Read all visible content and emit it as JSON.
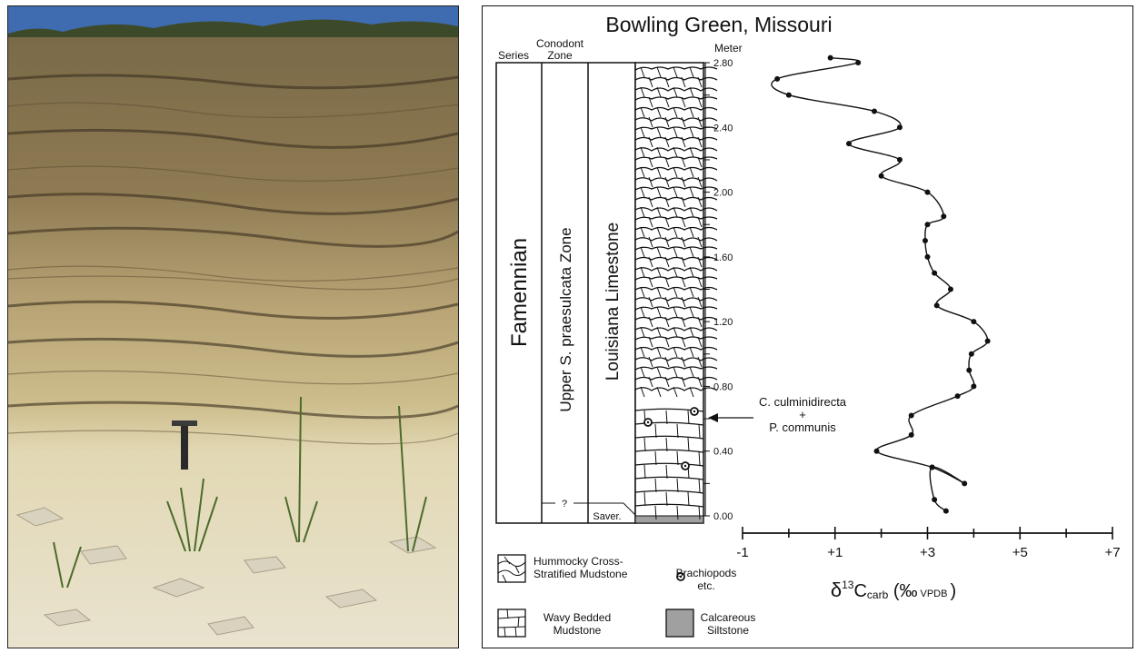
{
  "photo": {
    "subject": "outcrop-photo"
  },
  "figure": {
    "title": "Bowling Green, Missouri",
    "columns": {
      "series_header": "Series",
      "conodont_header_line1": "Conodont",
      "conodont_header_line2": "Zone",
      "meter_header": "Meter",
      "series_value": "Famennian",
      "zone_value": "Upper S. praesulcata Zone",
      "formation_value": "Louisiana Limestone",
      "uncertain_marker": "?",
      "saverton_label": "Saver."
    },
    "annotation": {
      "line1": "C. culminidirecta",
      "line2": "+",
      "line3": "P. communis"
    },
    "legend": {
      "hummocky_line1": "Hummocky Cross-",
      "hummocky_line2": "Stratified Mudstone",
      "brachiopods_line1": "Brachiopods",
      "brachiopods_line2": "etc.",
      "wavy_line1": "Wavy Bedded",
      "wavy_line2": "Mudstone",
      "siltstone_line1": "Calcareous",
      "siltstone_line2": "Siltstone"
    },
    "xaxis": {
      "label_main": "δ",
      "label_sup": "13",
      "label_c": "C",
      "label_sub": "carb",
      "label_unit_open": " (‰",
      "label_unit_sub": "VPDB",
      "label_unit_close": ")"
    }
  },
  "chart_data": {
    "type": "line",
    "xlabel": "δ13Ccarb (‰ VPDB)",
    "ylabel": "Meter",
    "xlim": [
      -1,
      7
    ],
    "ylim": [
      0,
      2.8
    ],
    "x_ticks": [
      "-1",
      "+1",
      "+3",
      "+5",
      "+7"
    ],
    "x_tick_values": [
      -1,
      1,
      3,
      5,
      7
    ],
    "y_ticks": [
      "0.00",
      "0.40",
      "0.80",
      "1.20",
      "1.60",
      "2.00",
      "2.40",
      "2.80"
    ],
    "y_tick_values": [
      0,
      0.4,
      0.8,
      1.2,
      1.6,
      2.0,
      2.4,
      2.8
    ],
    "series": [
      {
        "x": [
          3.4,
          3.15,
          3.1,
          3.8,
          3.1,
          1.9,
          2.65,
          2.65,
          3.65,
          4.0,
          3.9,
          3.95,
          4.3,
          4.0,
          3.2,
          3.5,
          3.15,
          3.0,
          2.95,
          3.0,
          3.35,
          3.0,
          2.0,
          2.4,
          1.3,
          2.4,
          1.85,
          0.0,
          -0.25,
          1.5,
          0.9
        ],
        "y": [
          0.03,
          0.1,
          0.3,
          0.2,
          0.3,
          0.4,
          0.5,
          0.62,
          0.74,
          0.8,
          0.9,
          1.0,
          1.08,
          1.2,
          1.3,
          1.4,
          1.5,
          1.6,
          1.7,
          1.8,
          1.85,
          2.0,
          2.1,
          2.2,
          2.3,
          2.4,
          2.5,
          2.6,
          2.7,
          2.8,
          2.83
        ]
      }
    ]
  }
}
